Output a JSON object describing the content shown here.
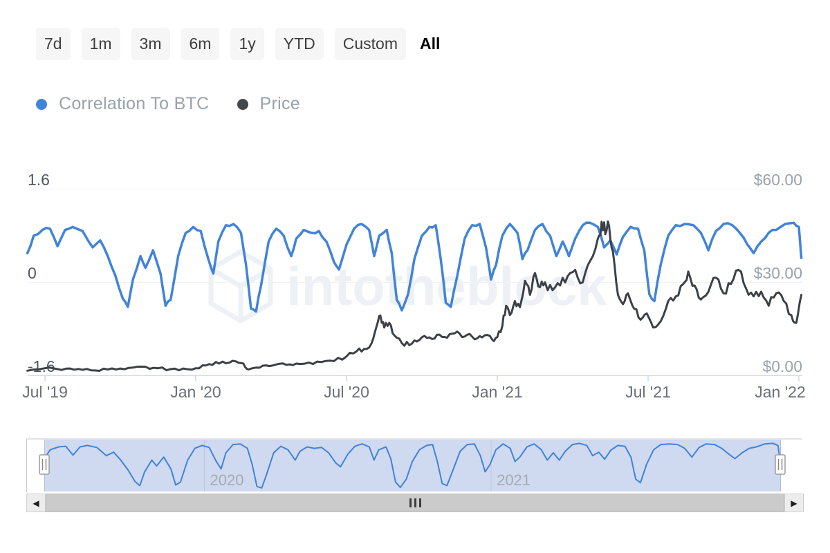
{
  "toolbar": {
    "ranges": [
      {
        "label": "7d",
        "active": false
      },
      {
        "label": "1m",
        "active": false
      },
      {
        "label": "3m",
        "active": false
      },
      {
        "label": "6m",
        "active": false
      },
      {
        "label": "1y",
        "active": false
      },
      {
        "label": "YTD",
        "active": false
      },
      {
        "label": "Custom",
        "active": false
      },
      {
        "label": "All",
        "active": true
      }
    ]
  },
  "legend": {
    "items": [
      {
        "label": "Correlation To BTC",
        "color": "#4183d8"
      },
      {
        "label": "Price",
        "color": "#43474c"
      }
    ]
  },
  "watermark": {
    "text": "intotheblock"
  },
  "icons": {
    "scrollbar_left_arrow": "◀",
    "scrollbar_right_arrow": "▶",
    "intotheblock_cube": "wireframe-cube",
    "navigator_handle_grip": "double-bar"
  },
  "chart_data": {
    "type": "line",
    "title": "",
    "grid": "horizontal-only",
    "legend_position": "top",
    "x_axis": {
      "unit": "months since Jul 2019",
      "range": [
        -0.7,
        30.1
      ],
      "ticks": [
        {
          "m": 0,
          "label": "Jul '19"
        },
        {
          "m": 6,
          "label": "Jan '20"
        },
        {
          "m": 12,
          "label": "Jul '20"
        },
        {
          "m": 18,
          "label": "Jan '21"
        },
        {
          "m": 24,
          "label": "Jul '21"
        },
        {
          "m": 30,
          "label": "Jan '22"
        }
      ]
    },
    "left_axis": {
      "title": "Correlation To BTC",
      "range": [
        -1.6,
        1.6
      ],
      "ticks": [
        {
          "v": 1.6,
          "label": "1.6"
        },
        {
          "v": 0,
          "label": "0"
        },
        {
          "v": -1.6,
          "label": "-1.6"
        }
      ]
    },
    "right_axis": {
      "title": "Price",
      "range": [
        0,
        60
      ],
      "ticks": [
        {
          "v": 60,
          "label": "$60.00"
        },
        {
          "v": 30,
          "label": "$30.00"
        },
        {
          "v": 0,
          "label": "$0.00"
        }
      ]
    },
    "series": [
      {
        "name": "Correlation To BTC",
        "axis": "left",
        "color": "#4183d8",
        "points": [
          [
            -0.7,
            0.5
          ],
          [
            -0.45,
            0.8
          ],
          [
            -0.1,
            0.9
          ],
          [
            0.2,
            0.92
          ],
          [
            0.5,
            0.62
          ],
          [
            0.8,
            0.9
          ],
          [
            1.1,
            0.95
          ],
          [
            1.5,
            0.88
          ],
          [
            1.9,
            0.6
          ],
          [
            2.2,
            0.72
          ],
          [
            2.5,
            0.45
          ],
          [
            2.8,
            0.12
          ],
          [
            3.1,
            -0.28
          ],
          [
            3.3,
            -0.42
          ],
          [
            3.5,
            0.05
          ],
          [
            3.8,
            0.45
          ],
          [
            4.0,
            0.25
          ],
          [
            4.3,
            0.55
          ],
          [
            4.6,
            0.15
          ],
          [
            4.8,
            -0.4
          ],
          [
            5.0,
            -0.3
          ],
          [
            5.3,
            0.45
          ],
          [
            5.6,
            0.85
          ],
          [
            5.9,
            0.95
          ],
          [
            6.2,
            0.88
          ],
          [
            6.5,
            0.4
          ],
          [
            6.7,
            0.15
          ],
          [
            6.9,
            0.7
          ],
          [
            7.2,
            0.98
          ],
          [
            7.5,
            1.0
          ],
          [
            7.8,
            0.85
          ],
          [
            8.0,
            0.3
          ],
          [
            8.2,
            -0.45
          ],
          [
            8.4,
            -0.5
          ],
          [
            8.6,
            -0.05
          ],
          [
            8.9,
            0.7
          ],
          [
            9.2,
            0.92
          ],
          [
            9.5,
            0.8
          ],
          [
            9.8,
            0.45
          ],
          [
            10.0,
            0.75
          ],
          [
            10.3,
            0.9
          ],
          [
            10.6,
            0.85
          ],
          [
            10.9,
            0.88
          ],
          [
            11.2,
            0.7
          ],
          [
            11.5,
            0.35
          ],
          [
            11.7,
            0.22
          ],
          [
            12.0,
            0.65
          ],
          [
            12.3,
            0.92
          ],
          [
            12.6,
            1.0
          ],
          [
            12.9,
            0.9
          ],
          [
            13.1,
            0.45
          ],
          [
            13.3,
            0.8
          ],
          [
            13.6,
            0.9
          ],
          [
            13.8,
            0.5
          ],
          [
            14.0,
            -0.3
          ],
          [
            14.2,
            -0.48
          ],
          [
            14.45,
            -0.2
          ],
          [
            14.7,
            0.4
          ],
          [
            15.0,
            0.8
          ],
          [
            15.3,
            0.95
          ],
          [
            15.55,
            0.98
          ],
          [
            15.75,
            0.4
          ],
          [
            15.95,
            -0.35
          ],
          [
            16.15,
            -0.42
          ],
          [
            16.4,
            0.1
          ],
          [
            16.7,
            0.75
          ],
          [
            17.0,
            0.98
          ],
          [
            17.3,
            1.0
          ],
          [
            17.55,
            0.6
          ],
          [
            17.75,
            0.05
          ],
          [
            17.95,
            0.3
          ],
          [
            18.2,
            0.8
          ],
          [
            18.5,
            1.0
          ],
          [
            18.8,
            0.85
          ],
          [
            19.0,
            0.4
          ],
          [
            19.2,
            0.55
          ],
          [
            19.5,
            0.9
          ],
          [
            19.8,
            1.0
          ],
          [
            20.1,
            0.8
          ],
          [
            20.35,
            0.45
          ],
          [
            20.6,
            0.7
          ],
          [
            20.85,
            0.45
          ],
          [
            21.1,
            0.75
          ],
          [
            21.4,
            0.98
          ],
          [
            21.7,
            1.02
          ],
          [
            22.0,
            0.95
          ],
          [
            22.25,
            0.6
          ],
          [
            22.5,
            0.72
          ],
          [
            22.75,
            0.48
          ],
          [
            23.0,
            0.78
          ],
          [
            23.3,
            0.95
          ],
          [
            23.6,
            0.92
          ],
          [
            23.85,
            0.55
          ],
          [
            24.05,
            -0.2
          ],
          [
            24.25,
            -0.32
          ],
          [
            24.5,
            0.3
          ],
          [
            24.8,
            0.8
          ],
          [
            25.1,
            0.98
          ],
          [
            25.45,
            1.0
          ],
          [
            25.8,
            0.98
          ],
          [
            26.1,
            0.85
          ],
          [
            26.4,
            0.55
          ],
          [
            26.7,
            0.88
          ],
          [
            27.0,
            1.0
          ],
          [
            27.35,
            0.98
          ],
          [
            27.65,
            0.85
          ],
          [
            27.95,
            0.65
          ],
          [
            28.2,
            0.5
          ],
          [
            28.5,
            0.7
          ],
          [
            28.8,
            0.85
          ],
          [
            29.1,
            0.9
          ],
          [
            29.45,
            1.0
          ],
          [
            29.8,
            1.02
          ],
          [
            30.0,
            0.95
          ],
          [
            30.1,
            0.42
          ]
        ]
      },
      {
        "name": "Price",
        "axis": "right",
        "color": "#3c4148",
        "points": [
          [
            -0.7,
            1.6
          ],
          [
            0,
            2.4
          ],
          [
            0.5,
            2.1
          ],
          [
            1,
            2.3
          ],
          [
            1.5,
            1.9
          ],
          [
            2,
            1.7
          ],
          [
            2.5,
            2.0
          ],
          [
            3,
            2.3
          ],
          [
            3.5,
            2.6
          ],
          [
            4,
            2.9
          ],
          [
            4.5,
            2.4
          ],
          [
            5,
            2.1
          ],
          [
            5.5,
            2.3
          ],
          [
            6,
            2.4
          ],
          [
            6.4,
            3.3
          ],
          [
            6.8,
            4.4
          ],
          [
            7.2,
            4.0
          ],
          [
            7.6,
            4.6
          ],
          [
            7.9,
            3.9
          ],
          [
            8.1,
            2.0
          ],
          [
            8.4,
            2.6
          ],
          [
            8.8,
            3.3
          ],
          [
            9.2,
            3.6
          ],
          [
            9.6,
            3.5
          ],
          [
            10,
            3.9
          ],
          [
            10.5,
            4.2
          ],
          [
            11,
            4.4
          ],
          [
            11.5,
            4.7
          ],
          [
            12,
            6.2
          ],
          [
            12.4,
            7.8
          ],
          [
            12.7,
            8.6
          ],
          [
            13,
            10.5
          ],
          [
            13.2,
            16.0
          ],
          [
            13.35,
            19.3
          ],
          [
            13.5,
            15.5
          ],
          [
            13.7,
            17.0
          ],
          [
            13.9,
            13.0
          ],
          [
            14.2,
            10.5
          ],
          [
            14.5,
            9.8
          ],
          [
            14.8,
            11.0
          ],
          [
            15.1,
            12.8
          ],
          [
            15.4,
            11.8
          ],
          [
            15.7,
            13.2
          ],
          [
            16,
            12.2
          ],
          [
            16.3,
            13.6
          ],
          [
            16.6,
            12.4
          ],
          [
            16.9,
            13.4
          ],
          [
            17.2,
            12.0
          ],
          [
            17.5,
            13.0
          ],
          [
            17.8,
            11.6
          ],
          [
            18,
            12.4
          ],
          [
            18.2,
            16.0
          ],
          [
            18.35,
            22.5
          ],
          [
            18.5,
            19.5
          ],
          [
            18.7,
            24.0
          ],
          [
            18.9,
            22.0
          ],
          [
            19.1,
            30.5
          ],
          [
            19.3,
            26.0
          ],
          [
            19.5,
            33.0
          ],
          [
            19.7,
            28.5
          ],
          [
            19.9,
            30.0
          ],
          [
            20.2,
            27.5
          ],
          [
            20.5,
            29.0
          ],
          [
            20.8,
            32.0
          ],
          [
            21.1,
            34.0
          ],
          [
            21.4,
            30.0
          ],
          [
            21.7,
            37.0
          ],
          [
            22.0,
            44.0
          ],
          [
            22.15,
            49.5
          ],
          [
            22.3,
            45.5
          ],
          [
            22.45,
            48.0
          ],
          [
            22.6,
            40.0
          ],
          [
            22.8,
            26.0
          ],
          [
            23.0,
            23.0
          ],
          [
            23.2,
            26.5
          ],
          [
            23.45,
            21.5
          ],
          [
            23.7,
            18.0
          ],
          [
            23.95,
            20.0
          ],
          [
            24.2,
            15.5
          ],
          [
            24.5,
            17.5
          ],
          [
            24.8,
            24.0
          ],
          [
            25.1,
            25.5
          ],
          [
            25.4,
            29.5
          ],
          [
            25.6,
            33.5
          ],
          [
            25.85,
            29.0
          ],
          [
            26.1,
            24.5
          ],
          [
            26.4,
            27.0
          ],
          [
            26.7,
            31.5
          ],
          [
            27.0,
            26.5
          ],
          [
            27.3,
            29.5
          ],
          [
            27.6,
            34.0
          ],
          [
            27.9,
            28.0
          ],
          [
            28.2,
            25.5
          ],
          [
            28.5,
            27.0
          ],
          [
            28.8,
            22.5
          ],
          [
            29.1,
            26.5
          ],
          [
            29.4,
            24.0
          ],
          [
            29.7,
            19.5
          ],
          [
            29.9,
            17.0
          ],
          [
            30.1,
            26.0
          ]
        ]
      }
    ],
    "navigator": {
      "selected_range": "all",
      "years": [
        {
          "m": 6,
          "label": "2020"
        },
        {
          "m": 18,
          "label": "2021"
        }
      ]
    }
  }
}
